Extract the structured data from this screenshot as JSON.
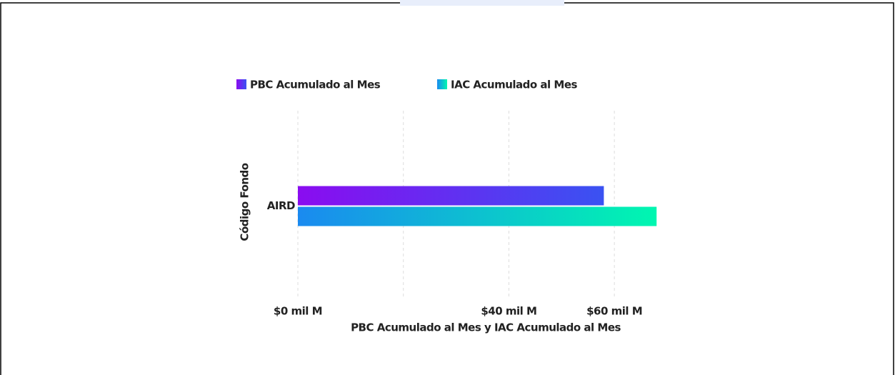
{
  "chart_data": {
    "type": "barh",
    "categories": [
      "AIRD"
    ],
    "y_label": "Código Fondo",
    "x_label": "PBC Acumulado al Mes y IAC Acumulado al Mes",
    "series": [
      {
        "name": "PBC Acumulado al Mes",
        "color": [
          "#8a0cf0",
          "#3a52f2"
        ],
        "values": [
          58
        ]
      },
      {
        "name": "IAC Acumulado al Mes",
        "color": [
          "#1a8af0",
          "#00f7b0"
        ],
        "values": [
          68
        ]
      }
    ],
    "xlim": [
      0,
      70
    ],
    "xticks": [
      {
        "value": 0,
        "label": "$0 mil M"
      },
      {
        "value": 20,
        "label": null
      },
      {
        "value": 40,
        "label": "$40 mil M"
      },
      {
        "value": 60,
        "label": "$60 mil M"
      }
    ],
    "grid": true
  }
}
